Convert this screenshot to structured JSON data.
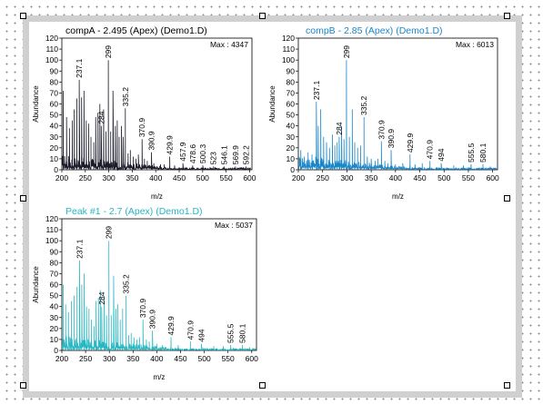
{
  "colors": {
    "frame": "#d0d0d0",
    "handle_border": "#000000"
  },
  "chart_data": [
    {
      "type": "line",
      "title": "compA - 2.495 (Apex)  (Demo1.D)",
      "title_color": "#000000",
      "series_color": "#1a1a2a",
      "max_label": "Max : 4347",
      "xlabel": "m/z",
      "ylabel": "Abundance",
      "xlim": [
        200,
        605
      ],
      "ylim": [
        0,
        120
      ],
      "xticks": [
        200,
        250,
        300,
        350,
        400,
        450,
        500,
        550,
        600
      ],
      "yticks": [
        0,
        10,
        20,
        30,
        40,
        50,
        60,
        70,
        80,
        90,
        100,
        110,
        120
      ],
      "peaks": [
        {
          "mz": 237.1,
          "value": 82,
          "label": "237.1"
        },
        {
          "mz": 284,
          "value": 40,
          "label": "284"
        },
        {
          "mz": 299,
          "value": 100,
          "label": "299"
        },
        {
          "mz": 335.2,
          "value": 56,
          "label": "335.2"
        },
        {
          "mz": 370.9,
          "value": 28,
          "label": "370.9"
        },
        {
          "mz": 390.9,
          "value": 16,
          "label": "390.9"
        },
        {
          "mz": 429.9,
          "value": 12,
          "label": "429.9"
        },
        {
          "mz": 457.9,
          "value": 6,
          "label": "457.9"
        },
        {
          "mz": 478.6,
          "value": 4,
          "label": "478.6"
        },
        {
          "mz": 500.3,
          "value": 4,
          "label": "500.3"
        },
        {
          "mz": 523,
          "value": 3,
          "label": "523"
        },
        {
          "mz": 546.1,
          "value": 3,
          "label": "546.1"
        },
        {
          "mz": 569.9,
          "value": 3,
          "label": "569.9"
        },
        {
          "mz": 592.2,
          "value": 3,
          "label": "592.2"
        }
      ],
      "other_peaks": [
        [
          203,
          72
        ],
        [
          210,
          48
        ],
        [
          216,
          38
        ],
        [
          222,
          45
        ],
        [
          226,
          55
        ],
        [
          232,
          65
        ],
        [
          242,
          66
        ],
        [
          247,
          72
        ],
        [
          252,
          45
        ],
        [
          257,
          42
        ],
        [
          262,
          30
        ],
        [
          268,
          25
        ],
        [
          272,
          48
        ],
        [
          277,
          52
        ],
        [
          281,
          60
        ],
        [
          289,
          55
        ],
        [
          294,
          35
        ],
        [
          304,
          35
        ],
        [
          309,
          72
        ],
        [
          314,
          40
        ],
        [
          318,
          45
        ],
        [
          322,
          30
        ],
        [
          327,
          40
        ],
        [
          331,
          30
        ],
        [
          341,
          15
        ],
        [
          346,
          18
        ],
        [
          352,
          12
        ],
        [
          358,
          10
        ],
        [
          363,
          14
        ],
        [
          376,
          10
        ],
        [
          382,
          8
        ],
        [
          396,
          6
        ],
        [
          410,
          5
        ],
        [
          418,
          5
        ],
        [
          440,
          4
        ]
      ]
    },
    {
      "type": "line",
      "title": "compB - 2.85 (Apex)  (Demo1.D)",
      "title_color": "#1a86c8",
      "series_color": "#1a86c8",
      "max_label": "Max : 6013",
      "xlabel": "m/z",
      "ylabel": "Abundance",
      "xlim": [
        200,
        610
      ],
      "ylim": [
        0,
        120
      ],
      "xticks": [
        200,
        250,
        300,
        350,
        400,
        450,
        500,
        550,
        600
      ],
      "yticks": [
        0,
        10,
        20,
        30,
        40,
        50,
        60,
        70,
        80,
        90,
        100,
        110,
        120
      ],
      "peaks": [
        {
          "mz": 237.1,
          "value": 62,
          "label": "237.1"
        },
        {
          "mz": 284,
          "value": 30,
          "label": "284"
        },
        {
          "mz": 299,
          "value": 100,
          "label": "299"
        },
        {
          "mz": 335.2,
          "value": 48,
          "label": "335.2"
        },
        {
          "mz": 370.9,
          "value": 26,
          "label": "370.9"
        },
        {
          "mz": 390.9,
          "value": 18,
          "label": "390.9"
        },
        {
          "mz": 429.9,
          "value": 14,
          "label": "429.9"
        },
        {
          "mz": 470.9,
          "value": 8,
          "label": "470.9"
        },
        {
          "mz": 494,
          "value": 6,
          "label": "494"
        },
        {
          "mz": 555.5,
          "value": 5,
          "label": "555.5"
        },
        {
          "mz": 580.1,
          "value": 5,
          "label": "580.1"
        }
      ],
      "other_peaks": [
        [
          205,
          18
        ],
        [
          212,
          12
        ],
        [
          220,
          16
        ],
        [
          228,
          14
        ],
        [
          241,
          40
        ],
        [
          246,
          55
        ],
        [
          252,
          30
        ],
        [
          258,
          25
        ],
        [
          264,
          20
        ],
        [
          270,
          32
        ],
        [
          275,
          22
        ],
        [
          280,
          25
        ],
        [
          289,
          40
        ],
        [
          294,
          28
        ],
        [
          305,
          30
        ],
        [
          311,
          55
        ],
        [
          316,
          25
        ],
        [
          322,
          20
        ],
        [
          328,
          22
        ],
        [
          342,
          12
        ],
        [
          350,
          10
        ],
        [
          358,
          8
        ],
        [
          364,
          10
        ],
        [
          378,
          8
        ],
        [
          384,
          6
        ],
        [
          400,
          5
        ],
        [
          415,
          6
        ],
        [
          440,
          5
        ],
        [
          455,
          6
        ],
        [
          520,
          4
        ],
        [
          540,
          4
        ],
        [
          595,
          3
        ]
      ]
    },
    {
      "type": "line",
      "title": "Peak #1 - 2.7 (Apex)  (Demo1.D)",
      "title_color": "#28b4c4",
      "series_color": "#28b8c4",
      "max_label": "Max : 5037",
      "xlabel": "m/z",
      "ylabel": "Abundance",
      "xlim": [
        200,
        610
      ],
      "ylim": [
        0,
        120
      ],
      "xticks": [
        200,
        250,
        300,
        350,
        400,
        450,
        500,
        550,
        600
      ],
      "yticks": [
        0,
        10,
        20,
        30,
        40,
        50,
        60,
        70,
        80,
        90,
        100,
        110,
        120
      ],
      "peaks": [
        {
          "mz": 237.1,
          "value": 82,
          "label": "237.1"
        },
        {
          "mz": 284,
          "value": 40,
          "label": "284"
        },
        {
          "mz": 299,
          "value": 100,
          "label": "299"
        },
        {
          "mz": 335.2,
          "value": 50,
          "label": "335.2"
        },
        {
          "mz": 370.9,
          "value": 28,
          "label": "370.9"
        },
        {
          "mz": 390.9,
          "value": 18,
          "label": "390.9"
        },
        {
          "mz": 429.9,
          "value": 12,
          "label": "429.9"
        },
        {
          "mz": 470.9,
          "value": 8,
          "label": "470.9"
        },
        {
          "mz": 494,
          "value": 6,
          "label": "494"
        },
        {
          "mz": 555.5,
          "value": 5,
          "label": "555.5"
        },
        {
          "mz": 580.1,
          "value": 5,
          "label": "580.1"
        }
      ],
      "other_peaks": [
        [
          203,
          60
        ],
        [
          208,
          42
        ],
        [
          214,
          35
        ],
        [
          220,
          45
        ],
        [
          226,
          50
        ],
        [
          232,
          58
        ],
        [
          242,
          60
        ],
        [
          247,
          70
        ],
        [
          252,
          40
        ],
        [
          257,
          38
        ],
        [
          262,
          28
        ],
        [
          268,
          22
        ],
        [
          272,
          45
        ],
        [
          277,
          48
        ],
        [
          281,
          55
        ],
        [
          289,
          50
        ],
        [
          294,
          32
        ],
        [
          304,
          32
        ],
        [
          309,
          68
        ],
        [
          314,
          38
        ],
        [
          318,
          42
        ],
        [
          323,
          28
        ],
        [
          328,
          38
        ],
        [
          341,
          14
        ],
        [
          346,
          16
        ],
        [
          352,
          12
        ],
        [
          358,
          10
        ],
        [
          364,
          12
        ],
        [
          378,
          10
        ],
        [
          384,
          8
        ],
        [
          400,
          6
        ],
        [
          412,
          5
        ],
        [
          445,
          5
        ],
        [
          520,
          4
        ],
        [
          540,
          4
        ],
        [
          595,
          3
        ]
      ]
    }
  ]
}
